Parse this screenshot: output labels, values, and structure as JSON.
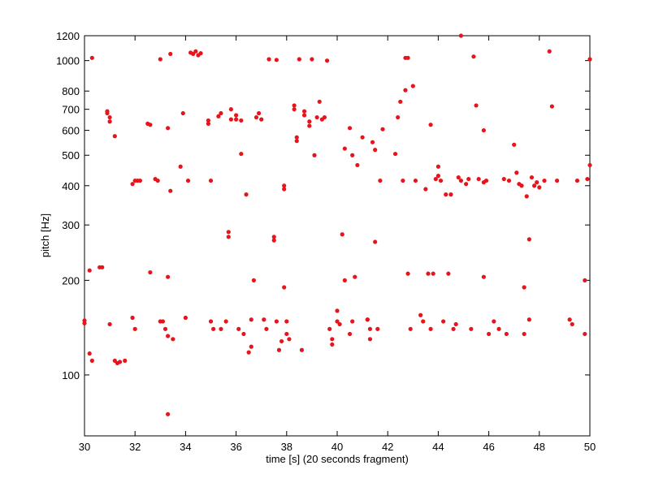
{
  "chart_data": {
    "type": "scatter",
    "xlabel": "time [s] (20 seconds fragment)",
    "ylabel": "pitch [Hz]",
    "xlim": [
      30,
      50
    ],
    "ylim": [
      64,
      1200
    ],
    "yscale": "log",
    "xticks": [
      30,
      32,
      34,
      36,
      38,
      40,
      42,
      44,
      46,
      48,
      50
    ],
    "yticks": [
      100,
      200,
      300,
      400,
      500,
      600,
      700,
      800,
      1000,
      1200
    ],
    "grid": false,
    "series": [
      {
        "color": "#e8141c",
        "x": [
          30.0,
          30.0,
          30.2,
          30.3,
          30.3,
          30.2,
          30.6,
          30.7,
          30.9,
          30.9,
          31.0,
          31.0,
          31.0,
          31.2,
          31.2,
          31.3,
          31.4,
          31.6,
          31.9,
          31.9,
          32.0,
          32.0,
          32.1,
          32.2,
          32.5,
          32.6,
          32.6,
          32.8,
          32.9,
          33.0,
          33.0,
          33.1,
          33.2,
          33.3,
          33.3,
          33.3,
          33.4,
          33.4,
          33.5,
          33.3,
          33.8,
          33.9,
          34.0,
          34.1,
          34.2,
          34.3,
          34.4,
          34.5,
          34.6,
          34.9,
          34.9,
          35.0,
          35.0,
          35.1,
          35.3,
          35.4,
          35.4,
          35.6,
          35.7,
          35.7,
          35.8,
          35.8,
          36.0,
          36.0,
          36.1,
          36.2,
          36.2,
          36.3,
          36.4,
          36.5,
          36.6,
          36.6,
          36.7,
          36.8,
          36.9,
          37.0,
          37.1,
          37.2,
          37.3,
          37.5,
          37.5,
          37.6,
          37.6,
          37.7,
          37.8,
          37.9,
          37.9,
          37.9,
          38.0,
          38.0,
          38.1,
          38.3,
          38.3,
          38.4,
          38.4,
          38.5,
          38.6,
          38.7,
          38.7,
          38.9,
          38.9,
          39.0,
          39.1,
          39.2,
          39.3,
          39.4,
          39.5,
          39.6,
          39.7,
          39.8,
          39.8,
          40.0,
          40.0,
          40.1,
          40.2,
          40.3,
          40.3,
          40.5,
          40.5,
          40.6,
          40.6,
          40.7,
          40.8,
          41.0,
          41.2,
          41.2,
          41.3,
          41.3,
          41.4,
          41.5,
          41.5,
          41.6,
          41.7,
          41.8,
          42.3,
          42.4,
          42.5,
          42.6,
          42.7,
          42.7,
          42.8,
          42.8,
          42.9,
          43.0,
          43.1,
          43.3,
          43.4,
          43.5,
          43.6,
          43.7,
          43.7,
          43.8,
          43.9,
          44.0,
          44.0,
          44.1,
          44.2,
          44.3,
          44.4,
          44.5,
          44.6,
          44.7,
          44.8,
          44.9,
          44.9,
          45.1,
          45.2,
          45.3,
          45.4,
          45.5,
          45.6,
          45.8,
          45.8,
          45.8,
          45.9,
          46.0,
          46.2,
          46.4,
          46.6,
          46.7,
          46.8,
          47.0,
          47.1,
          47.2,
          47.3,
          47.4,
          47.4,
          47.5,
          47.6,
          47.6,
          47.7,
          47.8,
          47.9,
          48.0,
          48.2,
          48.4,
          48.5,
          48.7,
          49.2,
          49.3,
          49.5,
          49.8,
          49.8,
          49.9,
          50.0,
          50.0
        ],
        "values": [
          149,
          146,
          117,
          111,
          1020,
          215,
          220,
          220,
          690,
          680,
          660,
          640,
          145,
          575,
          111,
          109,
          110,
          111,
          405,
          152,
          140,
          415,
          415,
          415,
          630,
          625,
          212,
          420,
          415,
          1010,
          148,
          148,
          140,
          75,
          205,
          610,
          385,
          1050,
          130,
          133,
          460,
          680,
          152,
          415,
          1060,
          1050,
          1070,
          1040,
          1055,
          645,
          630,
          415,
          148,
          140,
          665,
          680,
          140,
          148,
          285,
          275,
          650,
          700,
          650,
          670,
          140,
          505,
          645,
          135,
          375,
          118,
          123,
          150,
          200,
          660,
          680,
          650,
          150,
          140,
          1010,
          275,
          268,
          148,
          1005,
          120,
          128,
          400,
          390,
          190,
          148,
          135,
          130,
          720,
          700,
          570,
          555,
          1010,
          120,
          690,
          670,
          640,
          620,
          1010,
          500,
          660,
          740,
          650,
          660,
          1000,
          140,
          125,
          130,
          148,
          160,
          145,
          280,
          200,
          525,
          135,
          610,
          500,
          148,
          205,
          465,
          570,
          150,
          150,
          140,
          130,
          550,
          265,
          520,
          140,
          415,
          605,
          505,
          660,
          740,
          415,
          1020,
          805,
          1020,
          210,
          140,
          830,
          415,
          155,
          148,
          390,
          210,
          625,
          140,
          210,
          420,
          460,
          430,
          415,
          148,
          375,
          210,
          375,
          140,
          145,
          425,
          1200,
          415,
          405,
          420,
          140,
          1030,
          720,
          420,
          410,
          205,
          600,
          415,
          135,
          148,
          140,
          420,
          135,
          415,
          540,
          440,
          405,
          400,
          190,
          135,
          370,
          150,
          270,
          425,
          400,
          410,
          395,
          415,
          1070,
          715,
          415,
          150,
          145,
          415,
          135,
          200,
          420,
          1010,
          465
        ]
      }
    ]
  }
}
